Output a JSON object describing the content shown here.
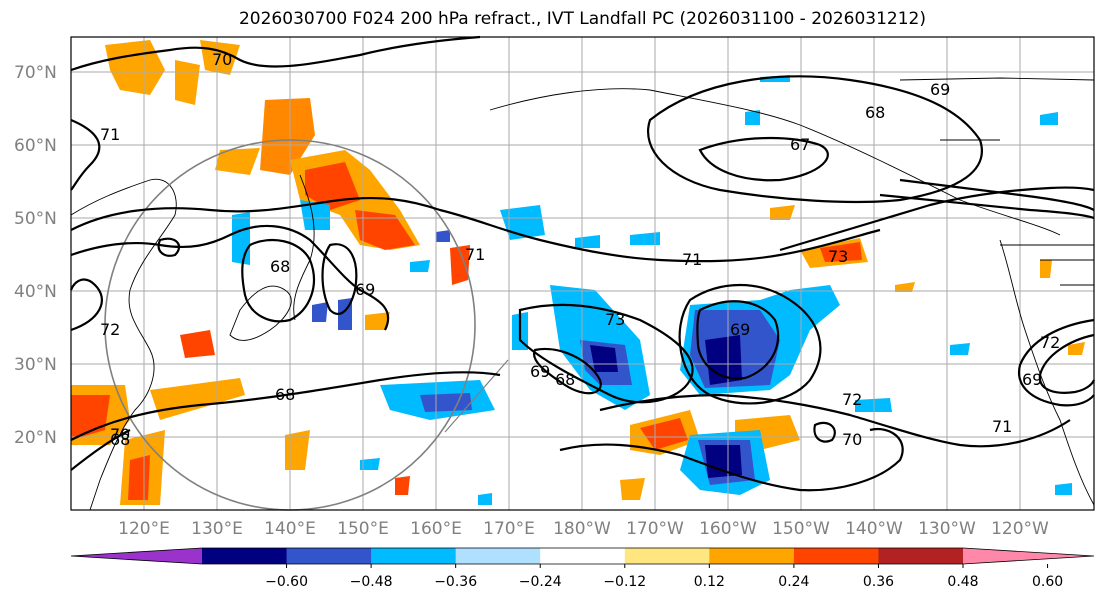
{
  "title": "2026030700 F024 200 hPa refract., IVT Landfall PC (2026031100 - 2026031212)",
  "lat_labels": [
    "70°N",
    "60°N",
    "50°N",
    "40°N",
    "30°N",
    "20°N"
  ],
  "lon_labels": [
    "120°E",
    "130°E",
    "140°E",
    "150°E",
    "160°E",
    "170°E",
    "180°W",
    "170°W",
    "160°W",
    "150°W",
    "140°W",
    "130°W",
    "120°W"
  ],
  "colorbar": {
    "tick_labels": [
      "−0.60",
      "−0.48",
      "−0.36",
      "−0.24",
      "−0.12",
      "0.12",
      "0.24",
      "0.36",
      "0.48",
      "0.60"
    ],
    "colors": [
      "#9933cc",
      "#000080",
      "#3355cc",
      "#00bbff",
      "#b0e0ff",
      "#ffffff",
      "#ffe680",
      "#ffa500",
      "#ff4400",
      "#b22222",
      "#ff88aa"
    ]
  },
  "contour_labels": [
    "70",
    "71",
    "71",
    "68",
    "69",
    "68",
    "69",
    "67",
    "68",
    "72",
    "70",
    "68",
    "69",
    "73",
    "69",
    "68",
    "71",
    "73",
    "72",
    "70",
    "71",
    "69",
    "72"
  ]
}
